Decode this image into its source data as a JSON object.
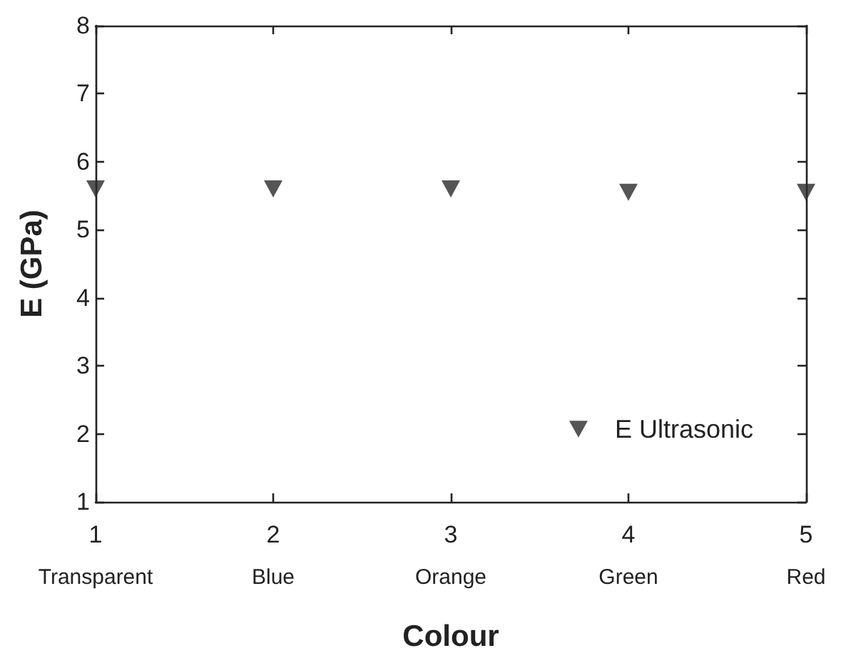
{
  "chart_data": {
    "type": "scatter",
    "xlabel": "Colour",
    "ylabel": "E (GPa)",
    "series": [
      {
        "name": "E Ultrasonic",
        "color": "#2b2b2b",
        "x": [
          1,
          2,
          3,
          4,
          5
        ],
        "values": [
          5.6,
          5.6,
          5.6,
          5.55,
          5.55
        ]
      }
    ],
    "xlim": [
      1,
      5
    ],
    "xticks": [
      {
        "value": 1,
        "label": "1\nTransparent"
      },
      {
        "value": 2,
        "label": "2\nBlue"
      },
      {
        "value": 3,
        "label": "3\nOrange"
      },
      {
        "value": 4,
        "label": "4\nGreen"
      },
      {
        "value": 5,
        "label": "5\nRed"
      }
    ],
    "ylim": [
      1,
      8
    ],
    "yticks": [
      1,
      2,
      3,
      4,
      5,
      6,
      7,
      8
    ],
    "marker": "triangle",
    "legend": "bottom right",
    "grid": false
  }
}
